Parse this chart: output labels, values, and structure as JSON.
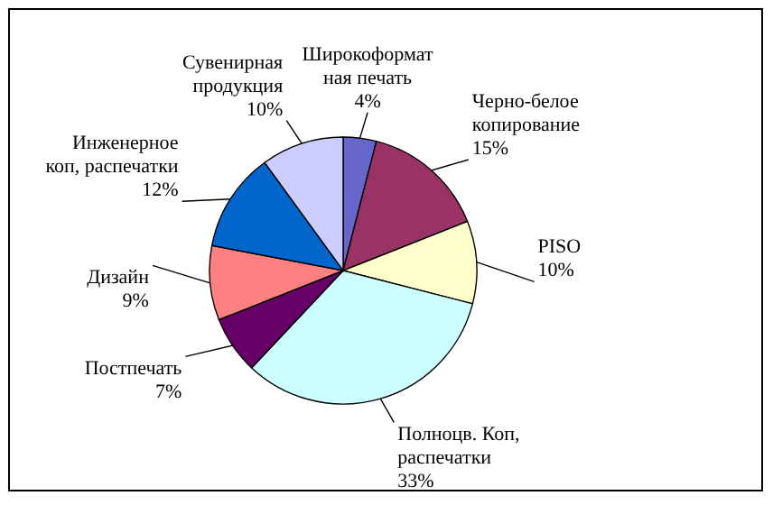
{
  "chart_data": {
    "type": "pie",
    "categories": [
      "Широкоформат\nная печать",
      "Черно-белое\nкопирование",
      "PISO",
      "Полноцв. Коп,\nраспечатки",
      "Постпечать",
      "Дизайн",
      "Инженерное\nкоп, распечатки",
      "Сувенирная\nпродукция"
    ],
    "values": [
      4,
      15,
      10,
      33,
      7,
      9,
      12,
      10
    ],
    "value_labels": [
      "4%",
      "15%",
      "10%",
      "33%",
      "7%",
      "9%",
      "12%",
      "10%"
    ],
    "colors": [
      "#6666cc",
      "#993366",
      "#ffffcc",
      "#ccffff",
      "#660066",
      "#ff8080",
      "#0066cc",
      "#ccccff"
    ]
  }
}
